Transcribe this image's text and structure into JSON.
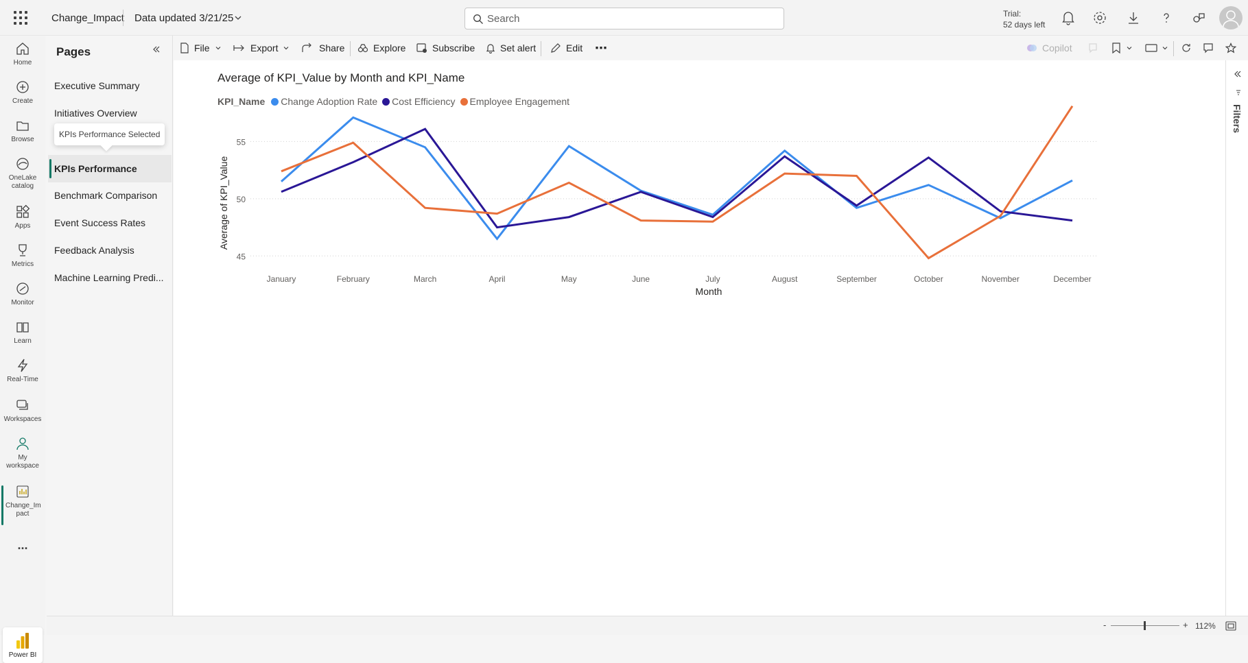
{
  "topbar": {
    "app_name": "Change_Impact",
    "data_updated": "Data updated 3/21/25",
    "search_placeholder": "Search",
    "trial_line1": "Trial:",
    "trial_line2": "52 days left"
  },
  "leftnav": {
    "items": [
      {
        "label": "Home",
        "icon": "home-icon"
      },
      {
        "label": "Create",
        "icon": "plus-circle-icon"
      },
      {
        "label": "Browse",
        "icon": "folder-icon"
      },
      {
        "label": "OneLake catalog",
        "icon": "onelake-icon"
      },
      {
        "label": "Apps",
        "icon": "apps-icon"
      },
      {
        "label": "Metrics",
        "icon": "trophy-icon"
      },
      {
        "label": "Monitor",
        "icon": "monitor-icon"
      },
      {
        "label": "Learn",
        "icon": "book-icon"
      },
      {
        "label": "Real-Time",
        "icon": "lightning-icon"
      },
      {
        "label": "Workspaces",
        "icon": "workspaces-icon"
      },
      {
        "label": "My workspace",
        "icon": "person-icon"
      },
      {
        "label": "Change_Im pact",
        "icon": "report-icon"
      }
    ],
    "more": "...",
    "powerbi_label": "Power BI"
  },
  "pages": {
    "title": "Pages",
    "items": [
      "Executive Summary",
      "Initiatives Overview",
      "KPIs Performance",
      "Benchmark Comparison",
      "Event Success Rates",
      "Feedback Analysis",
      "Machine Learning Predi..."
    ],
    "selected_index": 2,
    "tooltip": "KPIs Performance Selected"
  },
  "toolbar": {
    "file": "File",
    "export": "Export",
    "share": "Share",
    "explore": "Explore",
    "subscribe": "Subscribe",
    "set_alert": "Set alert",
    "edit": "Edit",
    "more": "⋯",
    "copilot": "Copilot"
  },
  "filters": {
    "label": "Filters"
  },
  "status": {
    "zoom": "112%",
    "zoom_minus": "-",
    "zoom_plus": "+"
  },
  "colors": {
    "change_adoption": "#3b8ced",
    "cost_efficiency": "#2a1796",
    "employee_engagement": "#e8703a",
    "accent": "#117865"
  },
  "chart_data": {
    "type": "line",
    "title": "Average of KPI_Value by Month and KPI_Name",
    "legend_title": "KPI_Name",
    "xlabel": "Month",
    "ylabel": "Average of KPI_Value",
    "categories": [
      "January",
      "February",
      "March",
      "April",
      "May",
      "June",
      "July",
      "August",
      "September",
      "October",
      "November",
      "December"
    ],
    "yticks": [
      45,
      50,
      55
    ],
    "ylim": [
      44,
      58.5
    ],
    "grid": "horizontal dotted",
    "legend_position": "top-left",
    "series": [
      {
        "name": "Change Adoption Rate",
        "color": "#3b8ced",
        "values": [
          51.5,
          57.1,
          54.5,
          46.5,
          54.6,
          50.7,
          48.6,
          54.2,
          49.2,
          51.2,
          48.3,
          51.6
        ]
      },
      {
        "name": "Cost Efficiency",
        "color": "#2a1796",
        "values": [
          50.6,
          53.2,
          56.1,
          47.5,
          48.4,
          50.6,
          48.4,
          53.7,
          49.4,
          53.6,
          48.9,
          48.1
        ]
      },
      {
        "name": "Employee Engagement",
        "color": "#e8703a",
        "values": [
          52.4,
          54.9,
          49.2,
          48.7,
          51.4,
          48.1,
          48.0,
          52.2,
          52.0,
          44.8,
          48.5,
          58.1
        ]
      }
    ]
  }
}
